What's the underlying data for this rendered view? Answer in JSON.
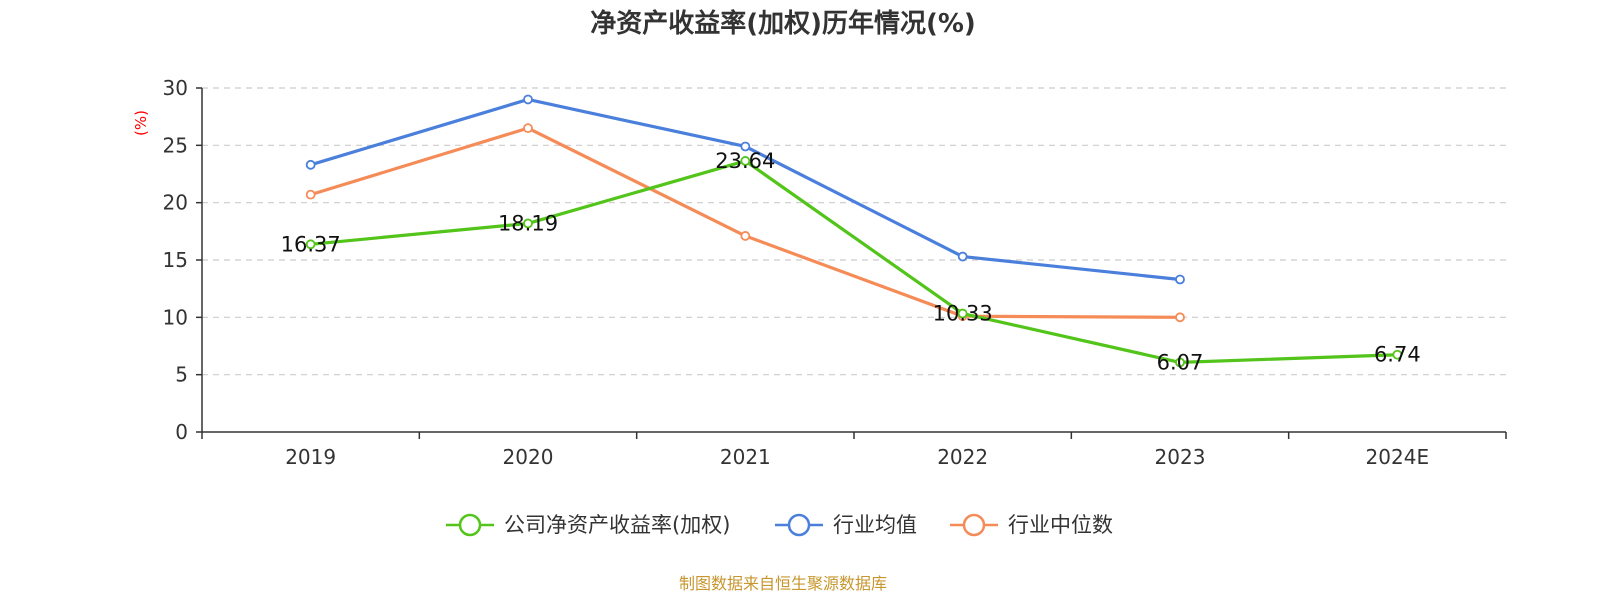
{
  "chart_data": {
    "type": "line",
    "title": "净资产收益率(加权)历年情况(%)",
    "ylabel": "(%)",
    "categories": [
      "2019",
      "2020",
      "2021",
      "2022",
      "2023",
      "2024E"
    ],
    "ylim": [
      0,
      30
    ],
    "yticks": [
      "0",
      "5",
      "10",
      "15",
      "20",
      "25",
      "30"
    ],
    "grid": true,
    "legend_position": "bottom",
    "series": [
      {
        "name": "公司净资产收益率(加权)",
        "color": "#52c41a",
        "values": [
          16.37,
          18.19,
          23.64,
          10.33,
          6.07,
          6.74
        ],
        "labels": [
          "16.37",
          "18.19",
          "23.64",
          "10.33",
          "6.07",
          "6.74"
        ]
      },
      {
        "name": "行业均值",
        "color": "#4a7fdc",
        "values": [
          23.3,
          29.0,
          24.9,
          15.3,
          13.3,
          null
        ]
      },
      {
        "name": "行业中位数",
        "color": "#f58b57",
        "values": [
          20.7,
          26.5,
          17.1,
          10.1,
          10.0,
          null
        ]
      }
    ]
  },
  "source": "制图数据来自恒生聚源数据库"
}
